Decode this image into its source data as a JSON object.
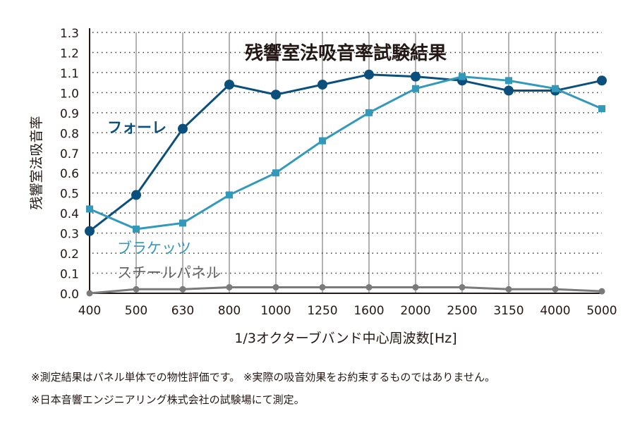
{
  "chart_data": {
    "type": "line",
    "title": "残響室法吸音率試験結果",
    "xlabel": "1/3オクターブバンド中心周波数[Hz]",
    "ylabel": "残響室法吸音率",
    "categories": [
      "400",
      "500",
      "630",
      "800",
      "1000",
      "1250",
      "1600",
      "2000",
      "2500",
      "3150",
      "4000",
      "5000"
    ],
    "yticks": [
      "0.0",
      "0.1",
      "0.2",
      "0.3",
      "0.4",
      "0.5",
      "0.6",
      "0.7",
      "0.8",
      "0.9",
      "1.0",
      "1.1",
      "1.2",
      "1.3"
    ],
    "ylim": [
      0,
      1.3
    ],
    "grid": {
      "horizontal": "dotted",
      "vertical": "solid"
    },
    "series": [
      {
        "name": "フォーレ",
        "color": "#0b4f7c",
        "marker": "circle",
        "values": [
          0.31,
          0.49,
          0.82,
          1.04,
          0.99,
          1.04,
          1.09,
          1.08,
          1.06,
          1.01,
          1.01,
          1.06
        ]
      },
      {
        "name": "ブラケッツ",
        "color": "#3399bb",
        "marker": "square",
        "values": [
          0.42,
          0.32,
          0.35,
          0.49,
          0.6,
          0.76,
          0.9,
          1.02,
          1.08,
          1.06,
          1.02,
          0.92
        ]
      },
      {
        "name": "スチールパネル",
        "color": "#7a7a7a",
        "marker": "circle",
        "values": [
          0.0,
          0.02,
          0.02,
          0.03,
          0.03,
          0.03,
          0.03,
          0.03,
          0.03,
          0.02,
          0.02,
          0.01
        ]
      }
    ]
  },
  "notes": [
    "※測定結果はパネル単体での物性評価です。 ※実際の吸音効果をお約束するものではありません。",
    "※日本音響エンジニアリング株式会社の試験場にて測定。"
  ]
}
